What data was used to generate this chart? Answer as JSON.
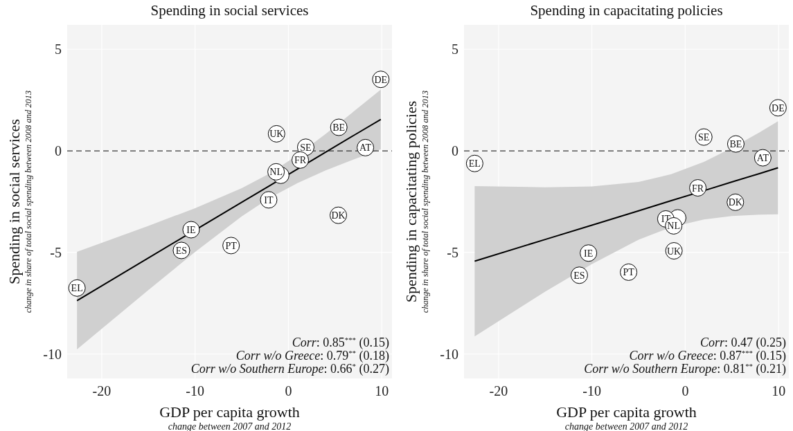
{
  "chart_data": [
    {
      "type": "scatter",
      "title": "Spending in social services",
      "xlabel": "GDP per capita growth\nchange between 2007 and 2012",
      "ylabel": "Spending in social services\nchange in share of total social spending between 2008 and 2013",
      "xlim": [
        -23.7,
        11.1
      ],
      "ylim": [
        -11.2,
        6.2
      ],
      "xticks": [
        -20,
        -10,
        0,
        10
      ],
      "yticks": [
        -10,
        -5,
        0,
        5
      ],
      "grid": true,
      "marker": "circle",
      "ref_lines": [
        {
          "axis": "y",
          "value": 0,
          "line_style": "dashed",
          "color": "#333333"
        }
      ],
      "annotations": [
        "Corr: 0.85$^{***}$ (0.15)",
        "Corr w/o Greece: 0.79$^{**}$ (0.18)",
        "Corr w/o Southern Europe: 0.66$^{*}$ (0.27)"
      ],
      "series": [
        {
          "type": "line",
          "marker": "none",
          "color": "#000000",
          "x": [
            -22.65,
            -15,
            -10,
            -5,
            -2,
            1,
            4,
            7,
            9.9
          ],
          "values": [
            -7.37,
            -5.27,
            -3.9,
            -2.53,
            -1.71,
            -0.89,
            -0.06,
            0.76,
            1.55
          ],
          "lower": [
            -9.77,
            -6.85,
            -4.98,
            -3.22,
            -2.31,
            -1.58,
            -0.96,
            -0.42,
            0.08
          ],
          "upper": [
            -4.97,
            -3.69,
            -2.82,
            -1.84,
            -1.11,
            -0.2,
            0.84,
            1.94,
            3.02
          ]
        },
        {
          "name": "DE",
          "color": "#ffffff",
          "x": [
            9.9
          ],
          "values": [
            3.52
          ]
        },
        {
          "name": "BE",
          "color": "#ffffff",
          "x": [
            5.4
          ],
          "values": [
            1.16
          ]
        },
        {
          "name": "UK",
          "color": "#ffffff",
          "x": [
            -1.27
          ],
          "values": [
            0.84
          ]
        },
        {
          "name": "SE",
          "color": "#ffffff",
          "x": [
            1.86
          ],
          "values": [
            0.18
          ]
        },
        {
          "name": "AT",
          "color": "#ffffff",
          "x": [
            8.25
          ],
          "values": [
            0.16
          ]
        },
        {
          "name": "FR",
          "color": "#ffffff",
          "x": [
            1.27
          ],
          "values": [
            -0.45
          ]
        },
        {
          "color": "#ffffff",
          "x": [
            -0.82
          ],
          "values": [
            -1.2
          ]
        },
        {
          "name": "NL",
          "color": "#ffffff",
          "x": [
            -1.32
          ],
          "values": [
            -1.03
          ]
        },
        {
          "name": "IT",
          "color": "#ffffff",
          "x": [
            -2.11
          ],
          "values": [
            -2.41
          ]
        },
        {
          "name": "DK",
          "color": "#ffffff",
          "x": [
            5.35
          ],
          "values": [
            -3.17
          ]
        },
        {
          "name": "IE",
          "color": "#ffffff",
          "x": [
            -10.42
          ],
          "values": [
            -3.88
          ]
        },
        {
          "name": "PT",
          "color": "#ffffff",
          "x": [
            -6.14
          ],
          "values": [
            -4.66
          ]
        },
        {
          "name": "ES",
          "color": "#ffffff",
          "x": [
            -11.46
          ],
          "values": [
            -4.9
          ]
        },
        {
          "name": "EL",
          "color": "#ffffff",
          "x": [
            -22.65
          ],
          "values": [
            -6.75
          ]
        }
      ]
    },
    {
      "type": "scatter",
      "title": "Spending in capacitating policies",
      "xlabel": "GDP per capita growth\nchange between 2007 and 2012",
      "ylabel": "Spending in capacitating policies\nchange in share of total social spending between 2008 and 2013",
      "xlim": [
        -23.7,
        11.1
      ],
      "ylim": [
        -11.2,
        6.2
      ],
      "xticks": [
        -20,
        -10,
        0,
        10
      ],
      "yticks": [
        -10,
        -5,
        0,
        5
      ],
      "grid": true,
      "marker": "circle",
      "ref_lines": [
        {
          "axis": "y",
          "value": 0,
          "line_style": "dashed",
          "color": "#333333"
        }
      ],
      "annotations": [
        "Corr: 0.47 (0.25)",
        "Corr w/o Greece: 0.87$^{***}$ (0.15)",
        "Corr w/o Southern Europe: 0.81$^{**}$ (0.21)"
      ],
      "series": [
        {
          "type": "line",
          "marker": "none",
          "color": "#000000",
          "x": [
            -22.56,
            -15,
            -10,
            -5,
            -1.5,
            2,
            5,
            8,
            9.94
          ],
          "values": [
            -5.43,
            -4.36,
            -3.66,
            -2.95,
            -2.45,
            -1.96,
            -1.53,
            -1.11,
            -0.83
          ],
          "lower": [
            -9.13,
            -6.93,
            -5.57,
            -4.37,
            -3.75,
            -3.38,
            -3.21,
            -3.14,
            -3.12
          ],
          "upper": [
            -1.73,
            -1.79,
            -1.75,
            -1.53,
            -1.15,
            -0.54,
            0.15,
            0.92,
            1.46
          ]
        },
        {
          "name": "DE",
          "color": "#ffffff",
          "x": [
            9.94
          ],
          "values": [
            2.12
          ]
        },
        {
          "name": "SE",
          "color": "#ffffff",
          "x": [
            1.99
          ],
          "values": [
            0.68
          ]
        },
        {
          "name": "BE",
          "color": "#ffffff",
          "x": [
            5.42
          ],
          "values": [
            0.34
          ]
        },
        {
          "name": "AT",
          "color": "#ffffff",
          "x": [
            8.31
          ],
          "values": [
            -0.34
          ]
        },
        {
          "name": "EL",
          "color": "#ffffff",
          "x": [
            -22.56
          ],
          "values": [
            -0.62
          ]
        },
        {
          "name": "FR",
          "color": "#ffffff",
          "x": [
            1.35
          ],
          "values": [
            -1.82
          ]
        },
        {
          "name": "DK",
          "color": "#ffffff",
          "x": [
            5.37
          ],
          "values": [
            -2.53
          ]
        },
        {
          "color": "#ffffff",
          "x": [
            -0.81
          ],
          "values": [
            -3.3
          ]
        },
        {
          "name": "IT",
          "color": "#ffffff",
          "x": [
            -2.08
          ],
          "values": [
            -3.35
          ]
        },
        {
          "name": "NL",
          "color": "#ffffff",
          "x": [
            -1.24
          ],
          "values": [
            -3.69
          ]
        },
        {
          "name": "UK",
          "color": "#ffffff",
          "x": [
            -1.21
          ],
          "values": [
            -4.92
          ]
        },
        {
          "name": "IE",
          "color": "#ffffff",
          "x": [
            -10.37
          ],
          "values": [
            -5.03
          ]
        },
        {
          "name": "PT",
          "color": "#ffffff",
          "x": [
            -6.07
          ],
          "values": [
            -5.97
          ]
        },
        {
          "name": "ES",
          "color": "#ffffff",
          "x": [
            -11.35
          ],
          "values": [
            -6.12
          ]
        }
      ]
    }
  ]
}
